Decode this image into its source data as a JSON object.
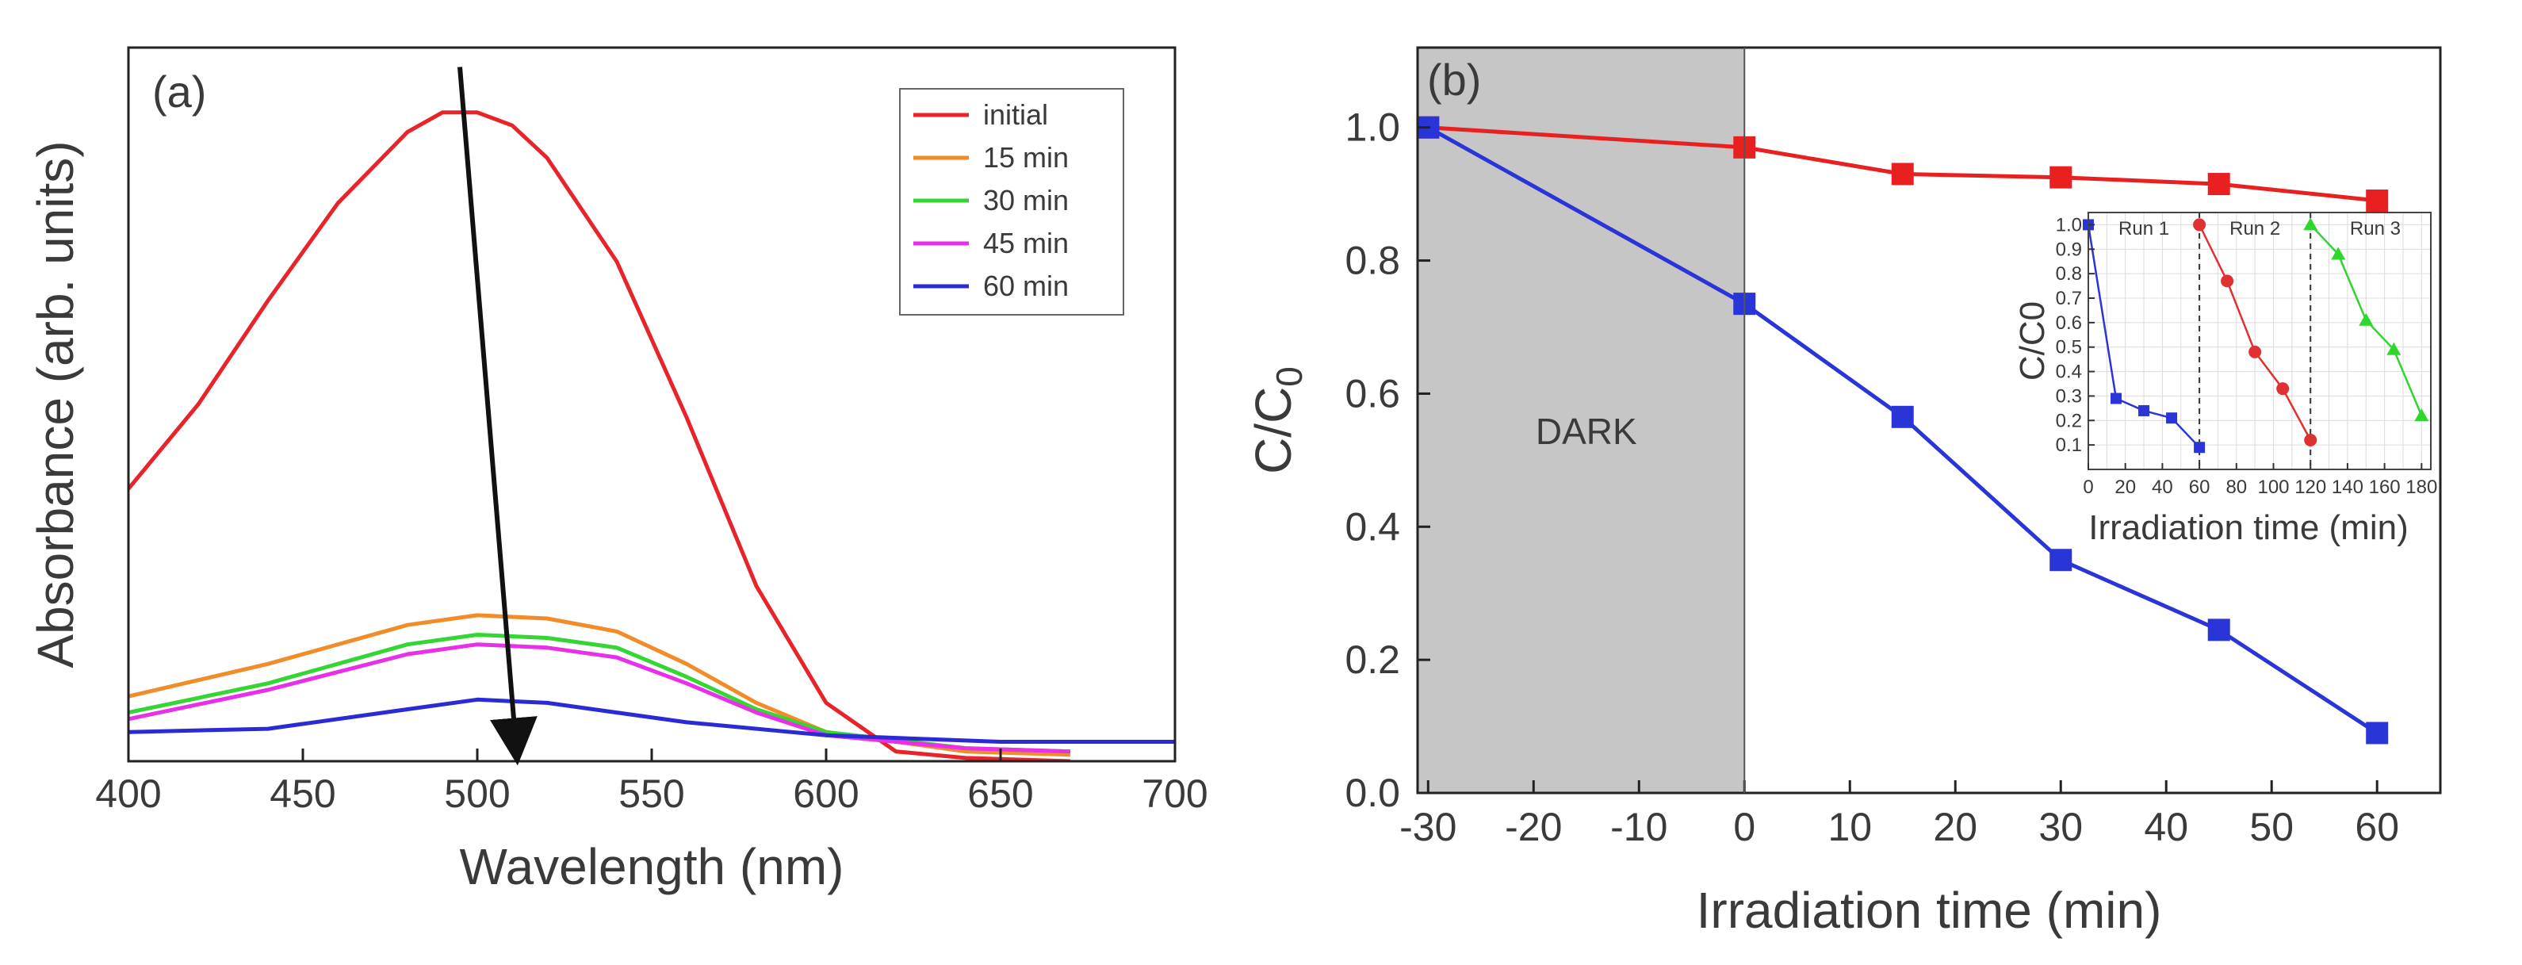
{
  "colors": {
    "initial": "#e8232a",
    "15 min": "#f28c28",
    "30 min": "#33d633",
    "45 min": "#e830e8",
    "60 min": "#2b2bd6",
    "red_series": "#e82020",
    "blue_series": "#2a35d8",
    "inset_red": "#e03030",
    "inset_green": "#2ed62e",
    "dark_region": "#c6c6c6"
  },
  "chart_data": [
    {
      "panel_label": "(a)",
      "type": "line",
      "xlabel": "Wavelength (nm)",
      "ylabel": "Absorbance (arb. units)",
      "xlim": [
        400,
        700
      ],
      "ylim": [
        0,
        1.1
      ],
      "xticks": [
        400,
        450,
        500,
        550,
        600,
        650,
        700
      ],
      "xtick_labels": [
        "400",
        "450",
        "500",
        "550",
        "600",
        "650",
        "700"
      ],
      "legend_position": "top-right",
      "annotation": "arrow indicating decreasing absorbance with time",
      "series": [
        {
          "name": "initial",
          "color_key": "initial",
          "x": [
            400,
            420,
            440,
            460,
            480,
            490,
            500,
            510,
            520,
            540,
            560,
            580,
            600,
            620,
            640,
            670
          ],
          "y": [
            0.42,
            0.55,
            0.71,
            0.86,
            0.97,
            1.0,
            1.0,
            0.98,
            0.93,
            0.77,
            0.53,
            0.27,
            0.09,
            0.015,
            0.005,
            0.0
          ]
        },
        {
          "name": "15 min",
          "color_key": "15 min",
          "x": [
            400,
            440,
            480,
            500,
            520,
            540,
            560,
            580,
            600,
            640,
            670
          ],
          "y": [
            0.1,
            0.15,
            0.21,
            0.225,
            0.22,
            0.2,
            0.15,
            0.09,
            0.045,
            0.015,
            0.01
          ]
        },
        {
          "name": "30 min",
          "color_key": "30 min",
          "x": [
            400,
            440,
            480,
            500,
            520,
            540,
            560,
            580,
            600,
            640,
            670
          ],
          "y": [
            0.075,
            0.12,
            0.18,
            0.195,
            0.19,
            0.175,
            0.13,
            0.08,
            0.045,
            0.02,
            0.015
          ]
        },
        {
          "name": "45 min",
          "color_key": "45 min",
          "x": [
            400,
            440,
            480,
            500,
            520,
            540,
            560,
            580,
            600,
            640,
            670
          ],
          "y": [
            0.065,
            0.11,
            0.165,
            0.18,
            0.175,
            0.16,
            0.12,
            0.075,
            0.04,
            0.02,
            0.015
          ]
        },
        {
          "name": "60 min",
          "color_key": "60 min",
          "x": [
            400,
            440,
            480,
            500,
            520,
            560,
            600,
            650,
            700
          ],
          "y": [
            0.045,
            0.05,
            0.08,
            0.095,
            0.09,
            0.06,
            0.04,
            0.03,
            0.03
          ]
        }
      ]
    },
    {
      "panel_label": "(b)",
      "type": "line",
      "xlabel": "Irradiation time (min)",
      "ylabel": "C/C",
      "ylabel_subscript": "0",
      "xlim": [
        -31,
        66
      ],
      "ylim": [
        0,
        1.12
      ],
      "xticks": [
        -30,
        -20,
        -10,
        0,
        10,
        20,
        30,
        40,
        50,
        60
      ],
      "xtick_labels": [
        "-30",
        "-20",
        "-10",
        "0",
        "10",
        "20",
        "30",
        "40",
        "50",
        "60"
      ],
      "yticks": [
        0.0,
        0.2,
        0.4,
        0.6,
        0.8,
        1.0
      ],
      "ytick_labels": [
        "0.0",
        "0.2",
        "0.4",
        "0.6",
        "0.8",
        "1.0"
      ],
      "shaded_region": {
        "label": "DARK",
        "x_from": -30,
        "x_to": 0
      },
      "series": [
        {
          "name": "red",
          "color_key": "red_series",
          "marker": "square",
          "x": [
            -30,
            0,
            15,
            30,
            45,
            60
          ],
          "y": [
            1.0,
            0.97,
            0.93,
            0.925,
            0.915,
            0.89
          ]
        },
        {
          "name": "blue",
          "color_key": "blue_series",
          "marker": "square",
          "x": [
            -30,
            0,
            15,
            30,
            45,
            60
          ],
          "y": [
            1.0,
            0.735,
            0.565,
            0.35,
            0.245,
            0.09
          ]
        }
      ]
    },
    {
      "panel_label": "inset",
      "type": "line",
      "xlabel": "Irradiation time (min)",
      "ylabel": "C/C0",
      "xlim": [
        0,
        185
      ],
      "ylim": [
        0,
        1.05
      ],
      "xticks": [
        0,
        20,
        40,
        60,
        80,
        100,
        120,
        140,
        160,
        180
      ],
      "xtick_labels": [
        "0",
        "20",
        "40",
        "60",
        "80",
        "100",
        "120",
        "140",
        "160",
        "180"
      ],
      "yticks": [
        0.1,
        0.2,
        0.3,
        0.4,
        0.5,
        0.6,
        0.7,
        0.8,
        0.9,
        1.0
      ],
      "ytick_labels": [
        "0.1",
        "0.2",
        "0.3",
        "0.4",
        "0.5",
        "0.6",
        "0.7",
        "0.8",
        "0.9",
        "1.0"
      ],
      "dividers_x": [
        60,
        120
      ],
      "runs": [
        {
          "name": "Run 1",
          "label_x": 30,
          "color_key": "blue_series",
          "marker": "square",
          "x": [
            0,
            15,
            30,
            45,
            60
          ],
          "y": [
            1.0,
            0.29,
            0.24,
            0.21,
            0.09
          ]
        },
        {
          "name": "Run 2",
          "label_x": 90,
          "color_key": "inset_red",
          "marker": "circle",
          "x": [
            60,
            75,
            90,
            105,
            120
          ],
          "y": [
            1.0,
            0.77,
            0.48,
            0.33,
            0.12
          ]
        },
        {
          "name": "Run 3",
          "label_x": 155,
          "color_key": "inset_green",
          "marker": "triangle",
          "x": [
            120,
            135,
            150,
            165,
            180
          ],
          "y": [
            1.0,
            0.88,
            0.61,
            0.49,
            0.22
          ]
        }
      ]
    }
  ]
}
